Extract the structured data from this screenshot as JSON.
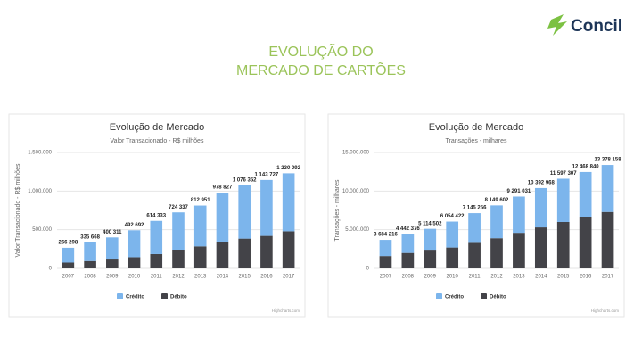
{
  "slide": {
    "title_lines": [
      "EVOLUÇÃO DO",
      "MERCADO DE CARTÕES"
    ],
    "logo": "Concil"
  },
  "chart_data": [
    {
      "type": "bar",
      "stacked": true,
      "title": "Evolução de Mercado",
      "subtitle": "Valor Transacionado - R$ milhões",
      "ylabel": "Valor Transacionado - R$ milhões",
      "categories": [
        "2007",
        "2008",
        "2009",
        "2010",
        "2011",
        "2012",
        "2013",
        "2014",
        "2015",
        "2016",
        "2017"
      ],
      "series": [
        {
          "name": "Crédito",
          "color": "#7cb5ec",
          "values": [
            191298,
            240668,
            285311,
            347692,
            429333,
            489337,
            527951,
            633827,
            691352,
            723727,
            750092
          ]
        },
        {
          "name": "Débito",
          "color": "#434348",
          "values": [
            75000,
            95000,
            115000,
            145000,
            185000,
            235000,
            285000,
            345000,
            385000,
            420000,
            480000
          ]
        }
      ],
      "totals": [
        266298,
        335668,
        400311,
        492692,
        614333,
        724337,
        812951,
        978827,
        1076352,
        1143727,
        1230092
      ],
      "total_labels": [
        "266 298",
        "335 668",
        "400 311",
        "492 692",
        "614 333",
        "724 337",
        "812 951",
        "978 827",
        "1 076 352",
        "1 143 727",
        "1 230 092"
      ],
      "ylim": [
        0,
        1500000
      ],
      "yticks": [
        0,
        {
          "value": 500000,
          "label": "500.000"
        },
        {
          "value": 1000000,
          "label": "1.000.000"
        },
        {
          "value": 1500000,
          "label": "1.500.000"
        }
      ],
      "grid": true,
      "legend": "bottom",
      "credits": "Highcharts.com"
    },
    {
      "type": "bar",
      "stacked": true,
      "title": "Evolução de Mercado",
      "subtitle": "Transações - milhares",
      "ylabel": "Transações - milhares",
      "categories": [
        "2007",
        "2008",
        "2009",
        "2010",
        "2011",
        "2012",
        "2013",
        "2014",
        "2015",
        "2016",
        "2017"
      ],
      "series": [
        {
          "name": "Crédito",
          "color": "#7cb5ec",
          "values": [
            2084216,
            2442376,
            2814502,
            3354422,
            3845256,
            4249602,
            4691031,
            5092968,
            5597307,
            5868840,
            6078158
          ]
        },
        {
          "name": "Débito",
          "color": "#434348",
          "values": [
            1600000,
            2000000,
            2300000,
            2700000,
            3300000,
            3900000,
            4600000,
            5300000,
            6000000,
            6600000,
            7300000
          ]
        }
      ],
      "totals": [
        3684216,
        4442376,
        5114502,
        6054422,
        7145256,
        8149602,
        9291031,
        10392968,
        11597307,
        12468840,
        13378158
      ],
      "total_labels": [
        "3 684 216",
        "4 442 376",
        "5 114 502",
        "6 054 422",
        "7 145 256",
        "8 149 602",
        "9 291 031",
        "10 392 968",
        "11 597 307",
        "12 468 840",
        "13 378 158"
      ],
      "ylim": [
        0,
        15000000
      ],
      "yticks": [
        0,
        {
          "value": 5000000,
          "label": "5.000.000"
        },
        {
          "value": 10000000,
          "label": "10.000.000"
        },
        {
          "value": 15000000,
          "label": "15.000.000"
        }
      ],
      "grid": true,
      "legend": "bottom",
      "credits": "Highcharts.com"
    }
  ]
}
